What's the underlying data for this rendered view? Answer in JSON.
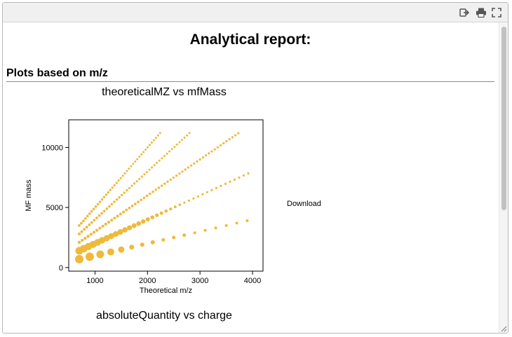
{
  "toolbar": {
    "icons": [
      "exit-icon",
      "print-icon",
      "fullscreen-icon"
    ]
  },
  "report": {
    "title": "Analytical report:",
    "section_heading": "Plots based on m/z",
    "download_label": "Download",
    "plots": [
      {
        "title": "theoreticalMZ vs mfMass"
      },
      {
        "title": "absoluteQuantity vs charge"
      }
    ]
  },
  "colors": {
    "marker": "#efb93a",
    "rule": "#8a8a8a"
  },
  "chart_data": {
    "type": "scatter",
    "title": "theoreticalMZ vs mfMass",
    "xlabel": "Theoretical m/z",
    "ylabel": "MF mass",
    "xlim": [
      500,
      4200
    ],
    "ylim": [
      -300,
      12300
    ],
    "xticks": [
      1000,
      2000,
      3000,
      4000
    ],
    "yticks": [
      0,
      5000,
      10000
    ],
    "grid": false,
    "series": [
      {
        "charge": 1,
        "x": [
          700,
          900,
          1100,
          1300,
          1500,
          1700,
          1900,
          2100,
          2300,
          2500,
          2700,
          2900,
          3100,
          3300,
          3500,
          3700,
          3900
        ],
        "size": [
          6,
          6,
          5.5,
          5,
          4.5,
          3.5,
          3,
          3,
          2.5,
          2.5,
          2.5,
          2,
          2,
          2,
          2,
          2,
          2
        ]
      },
      {
        "charge": 2,
        "x_start": 700,
        "x_end": 3920,
        "count": 38,
        "size_max": 5.5,
        "size_min": 1.6
      },
      {
        "charge": 3,
        "x_start": 700,
        "x_end": 3730,
        "count": 55,
        "size_max": 2.2,
        "size_min": 1.6
      },
      {
        "charge": 4,
        "x_start": 700,
        "x_end": 2800,
        "count": 45,
        "size_max": 2.0,
        "size_min": 1.5
      },
      {
        "charge": 5,
        "x_start": 700,
        "x_end": 2240,
        "count": 40,
        "size_max": 1.9,
        "size_min": 1.5
      }
    ]
  }
}
